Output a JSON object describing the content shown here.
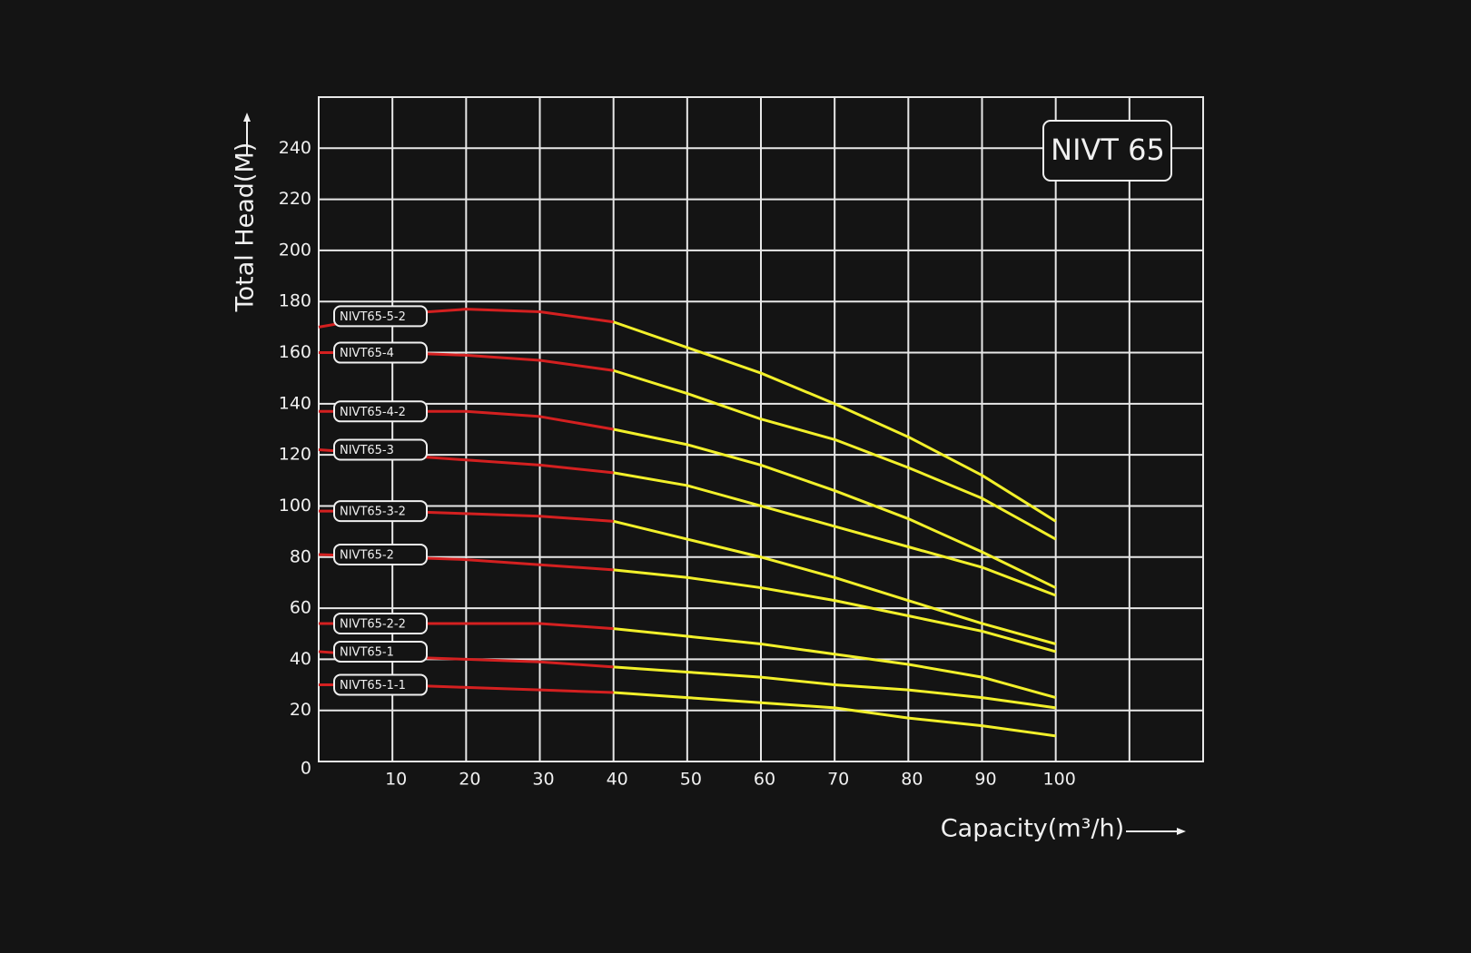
{
  "chart_data": {
    "type": "line",
    "title": "NIVT 65",
    "x_label": "Capacity(m³/h)",
    "y_label": "Total Head(M)",
    "x": [
      0,
      10,
      20,
      30,
      40,
      50,
      60,
      70,
      80,
      90,
      100
    ],
    "split_x": 40,
    "low_color": "#d42020",
    "high_color": "#f2f02a",
    "series": [
      {
        "name": "NIVT65-5-2",
        "values": [
          170,
          175,
          177,
          176,
          172,
          162,
          152,
          140,
          127,
          112,
          94
        ]
      },
      {
        "name": "NIVT65-4",
        "values": [
          160,
          160,
          159,
          157,
          153,
          144,
          134,
          126,
          115,
          103,
          87
        ]
      },
      {
        "name": "NIVT65-4-2",
        "values": [
          137,
          137,
          137,
          135,
          130,
          124,
          116,
          106,
          95,
          82,
          68
        ]
      },
      {
        "name": "NIVT65-3",
        "values": [
          122,
          120,
          118,
          116,
          113,
          108,
          100,
          92,
          84,
          76,
          65
        ]
      },
      {
        "name": "NIVT65-3-2",
        "values": [
          98,
          98,
          97,
          96,
          94,
          87,
          80,
          72,
          63,
          54,
          46
        ]
      },
      {
        "name": "NIVT65-2",
        "values": [
          81,
          80,
          79,
          77,
          75,
          72,
          68,
          63,
          57,
          51,
          43
        ]
      },
      {
        "name": "NIVT65-2-2",
        "values": [
          54,
          54,
          54,
          54,
          52,
          49,
          46,
          42,
          38,
          33,
          25
        ]
      },
      {
        "name": "NIVT65-1",
        "values": [
          43,
          41,
          40,
          39,
          37,
          35,
          33,
          30,
          28,
          25,
          21
        ]
      },
      {
        "name": "NIVT65-1-1",
        "values": [
          30,
          30,
          29,
          28,
          27,
          25,
          23,
          21,
          17,
          14,
          10
        ]
      }
    ],
    "xlim": [
      0,
      120
    ],
    "ylim": [
      0,
      260
    ],
    "xticks": [
      10,
      20,
      30,
      40,
      50,
      60,
      70,
      80,
      90,
      100
    ],
    "xgrid": [
      10,
      20,
      30,
      40,
      50,
      60,
      70,
      80,
      90,
      100,
      110,
      120
    ],
    "yticks": [
      0,
      20,
      40,
      60,
      80,
      100,
      120,
      140,
      160,
      180,
      200,
      220,
      240
    ],
    "grid": true
  }
}
